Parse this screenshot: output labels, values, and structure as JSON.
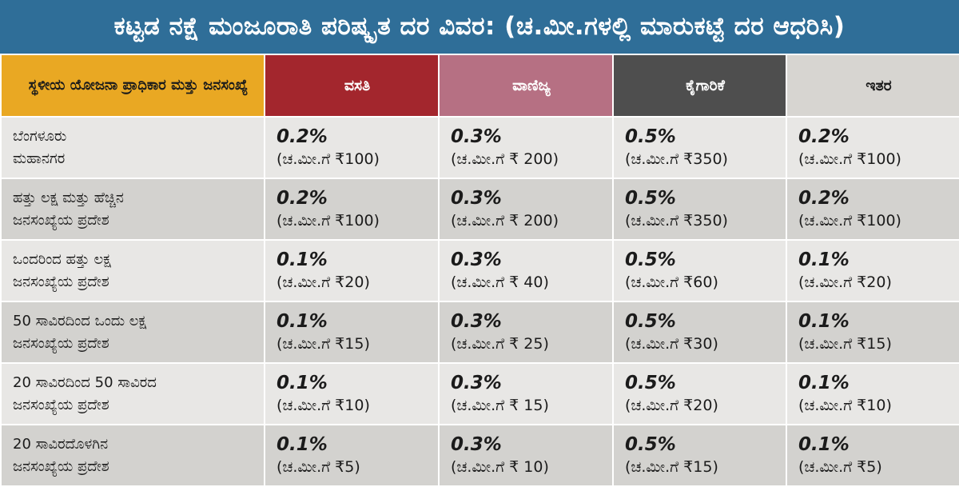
{
  "title": "ಕಟ್ಟಡ ನಕ್ಷೆ ಮಂಜೂರಾತಿ ಪರಿಷ್ಕೃತ ದರ ವಿವರ: (ಚ.ಮೀ.ಗಳಲ್ಲಿ ಮಾರುಕಟ್ಟೆ ದರ ಆಧರಿಸಿ)",
  "headers": {
    "authority": "ಸ್ಥಳೀಯ ಯೋಜನಾ ಪ್ರಾಧಿಕಾರ ಮತ್ತು ಜನಸಂಖ್ಯೆ",
    "residential": "ವಸತಿ",
    "commercial": "ವಾಣಿಜ್ಯ",
    "industrial": "ಕೈಗಾರಿಕೆ",
    "other": "ಇತರ"
  },
  "colors": {
    "title_bg": "#2f6e98",
    "authority_header": "#e9a823",
    "residential_header": "#a3262d",
    "commercial_header": "#b67083",
    "industrial_header": "#4e4e4e",
    "other_header": "#d7d5d1",
    "row_light": "#e8e7e5",
    "row_dark": "#d3d2cf"
  },
  "rows": [
    {
      "label_line1": "ಬೆಂಗಳೂರು",
      "label_line2": "ಮಹಾನಗರ",
      "residential": {
        "pct": "0.2%",
        "amt": "(ಚ.ಮೀ.ಗೆ ₹100)"
      },
      "commercial": {
        "pct": "0.3%",
        "amt": "(ಚ.ಮೀ.ಗೆ ₹ 200)"
      },
      "industrial": {
        "pct": "0.5%",
        "amt": "(ಚ.ಮೀ.ಗೆ ₹350)"
      },
      "other": {
        "pct": "0.2%",
        "amt": "(ಚ.ಮೀ.ಗೆ ₹100)"
      }
    },
    {
      "label_line1": "ಹತ್ತು ಲಕ್ಷ ಮತ್ತು ಹೆಚ್ಚಿನ",
      "label_line2": "ಜನಸಂಖ್ಯೆಯ ಪ್ರದೇಶ",
      "residential": {
        "pct": "0.2%",
        "amt": "(ಚ.ಮೀ.ಗೆ ₹100)"
      },
      "commercial": {
        "pct": "0.3%",
        "amt": "(ಚ.ಮೀ.ಗೆ ₹ 200)"
      },
      "industrial": {
        "pct": "0.5%",
        "amt": "(ಚ.ಮೀ.ಗೆ ₹350)"
      },
      "other": {
        "pct": "0.2%",
        "amt": "(ಚ.ಮೀ.ಗೆ ₹100)"
      }
    },
    {
      "label_line1": "ಒಂದರಿಂದ ಹತ್ತು ಲಕ್ಷ",
      "label_line2": "ಜನಸಂಖ್ಯೆಯ ಪ್ರದೇಶ",
      "residential": {
        "pct": "0.1%",
        "amt": "(ಚ.ಮೀ.ಗೆ ₹20)"
      },
      "commercial": {
        "pct": "0.3%",
        "amt": "(ಚ.ಮೀ.ಗೆ ₹ 40)"
      },
      "industrial": {
        "pct": "0.5%",
        "amt": "(ಚ.ಮೀ.ಗೆ ₹60)"
      },
      "other": {
        "pct": "0.1%",
        "amt": "(ಚ.ಮೀ.ಗೆ ₹20)"
      }
    },
    {
      "label_line1": "50 ಸಾವಿರದಿಂದ ಒಂದು ಲಕ್ಷ",
      "label_line2": "ಜನಸಂಖ್ಯೆಯ ಪ್ರದೇಶ",
      "residential": {
        "pct": "0.1%",
        "amt": "(ಚ.ಮೀ.ಗೆ ₹15)"
      },
      "commercial": {
        "pct": "0.3%",
        "amt": "(ಚ.ಮೀ.ಗೆ ₹ 25)"
      },
      "industrial": {
        "pct": "0.5%",
        "amt": "(ಚ.ಮೀ.ಗೆ ₹30)"
      },
      "other": {
        "pct": "0.1%",
        "amt": "(ಚ.ಮೀ.ಗೆ ₹15)"
      }
    },
    {
      "label_line1": "20 ಸಾವಿರದಿಂದ 50 ಸಾವಿರದ",
      "label_line2": "ಜನಸಂಖ್ಯೆಯ ಪ್ರದೇಶ",
      "residential": {
        "pct": "0.1%",
        "amt": "(ಚ.ಮೀ.ಗೆ ₹10)"
      },
      "commercial": {
        "pct": "0.3%",
        "amt": "(ಚ.ಮೀ.ಗೆ ₹ 15)"
      },
      "industrial": {
        "pct": "0.5%",
        "amt": "(ಚ.ಮೀ.ಗೆ ₹20)"
      },
      "other": {
        "pct": "0.1%",
        "amt": "(ಚ.ಮೀ.ಗೆ ₹10)"
      }
    },
    {
      "label_line1": "20 ಸಾವಿರದೊಳಗಿನ",
      "label_line2": "ಜನಸಂಖ್ಯೆಯ ಪ್ರದೇಶ",
      "residential": {
        "pct": "0.1%",
        "amt": "(ಚ.ಮೀ.ಗೆ ₹5)"
      },
      "commercial": {
        "pct": "0.3%",
        "amt": "(ಚ.ಮೀ.ಗೆ ₹ 10)"
      },
      "industrial": {
        "pct": "0.5%",
        "amt": "(ಚ.ಮೀ.ಗೆ ₹15)"
      },
      "other": {
        "pct": "0.1%",
        "amt": "(ಚ.ಮೀ.ಗೆ ₹5)"
      }
    }
  ]
}
